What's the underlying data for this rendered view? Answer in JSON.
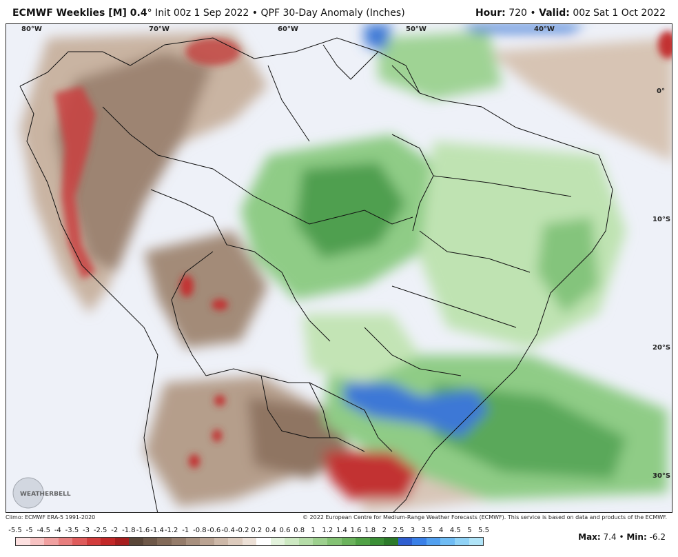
{
  "header": {
    "model": "ECMWF Weeklies [M] 0.4",
    "deg": "°",
    "init": " Init 00z 1 Sep 2022 • QPF 30-Day Anomaly (Inches)",
    "hour_label": "Hour:",
    "hour_value": "720",
    "valid_label": "Valid:",
    "valid_value": "00z Sat 1 Oct 2022"
  },
  "map": {
    "lon_labels": [
      "80°W",
      "70°W",
      "60°W",
      "50°W",
      "40°W"
    ],
    "lat_labels": [
      "0°",
      "10°S",
      "20°S",
      "30°S"
    ],
    "logo_text": "WEATHERBELL"
  },
  "footer": {
    "climo": "Climo: ECMWF ERA-5 1991-2020",
    "copyright": "© 2022 European Centre for Medium-Range Weather Forecasts (ECMWF). This service is based on data and products of the ECMWF.",
    "max_label": "Max:",
    "max_value": "7.4",
    "min_label": "Min:",
    "min_value": "-6.2"
  },
  "legend": {
    "ticks": [
      "-5.5",
      "-5",
      "-4.5",
      "-4",
      "-3.5",
      "-3",
      "-2.5",
      "-2",
      "-1.8",
      "-1.6",
      "-1.4",
      "-1.2",
      "-1",
      "-0.8",
      "-0.6",
      "-0.4",
      "-0.2",
      "0.2",
      "0.4",
      "0.6",
      "0.8",
      "1",
      "1.2",
      "1.4",
      "1.6",
      "1.8",
      "2",
      "2.5",
      "3",
      "3.5",
      "4",
      "4.5",
      "5",
      "5.5"
    ],
    "colors": [
      "#fde0e0",
      "#f7c2c2",
      "#f0a0a0",
      "#e87e7e",
      "#df5c5c",
      "#d23d3d",
      "#c22828",
      "#a61e1e",
      "#5a4638",
      "#6e5848",
      "#826a58",
      "#957c6a",
      "#a8907e",
      "#baa392",
      "#cdb8a8",
      "#ddcbbd",
      "#ece0d6",
      "#ffffff",
      "#e3f3dc",
      "#cde9c2",
      "#b5dda8",
      "#9dd08e",
      "#84c274",
      "#6bb35c",
      "#51a246",
      "#3b8f36",
      "#2c7a2a",
      "#2f5fd0",
      "#3a80e8",
      "#52a0f0",
      "#6fbcf4",
      "#8fd2f6",
      "#b0e4f8"
    ]
  }
}
